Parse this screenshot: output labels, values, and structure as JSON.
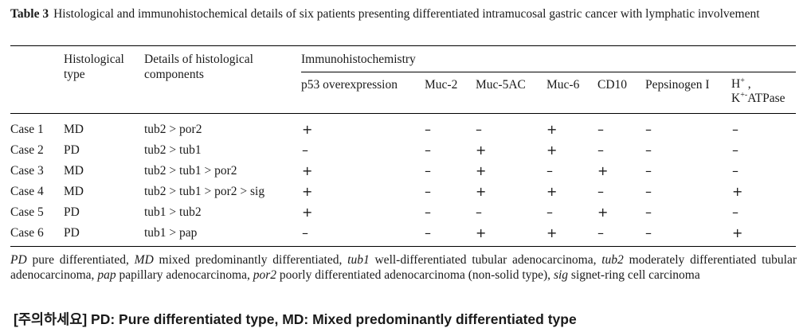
{
  "caption": {
    "label": "Table 3",
    "text": "Histological and immunohistochemical details of six patients presenting differentiated intramucosal gastric cancer with lymphatic involvement"
  },
  "headers": {
    "histological_type": "Histological type",
    "details": "Details of histological components",
    "ihc": "Immunohistochemistry",
    "markers": [
      "p53 overexpression",
      "Muc-2",
      "Muc-5AC",
      "Muc-6",
      "CD10",
      "Pepsinogen I"
    ],
    "atpase_line1_base": "H",
    "atpase_line1_sup": "+",
    "atpase_line1_tail": " ,",
    "atpase_line2_base": "K",
    "atpase_line2_sup": "+-",
    "atpase_line2_tail": "ATPase"
  },
  "rows": [
    {
      "case": "Case 1",
      "type": "MD",
      "details": "tub2 > por2",
      "markers": [
        "+",
        "–",
        "–",
        "+",
        "–",
        "–",
        "–"
      ]
    },
    {
      "case": "Case 2",
      "type": "PD",
      "details": "tub2 > tub1",
      "markers": [
        "–",
        "–",
        "+",
        "+",
        "–",
        "–",
        "–"
      ]
    },
    {
      "case": "Case 3",
      "type": "MD",
      "details": "tub2 > tub1 > por2",
      "markers": [
        "+",
        "–",
        "+",
        "–",
        "+",
        "–",
        "–"
      ]
    },
    {
      "case": "Case 4",
      "type": "MD",
      "details": "tub2 > tub1 > por2 > sig",
      "markers": [
        "+",
        "–",
        "+",
        "+",
        "–",
        "–",
        "+"
      ]
    },
    {
      "case": "Case 5",
      "type": "PD",
      "details": "tub1 > tub2",
      "markers": [
        "+",
        "–",
        "–",
        "–",
        "+",
        "–",
        "–"
      ]
    },
    {
      "case": "Case 6",
      "type": "PD",
      "details": "tub1 > pap",
      "markers": [
        "–",
        "–",
        "+",
        "+",
        "–",
        "–",
        "+"
      ]
    }
  ],
  "footnote": [
    {
      "abbr": "PD",
      "text": " pure differentiated, "
    },
    {
      "abbr": "MD",
      "text": " mixed predominantly differentiated, "
    },
    {
      "abbr": "tub1",
      "text": " well-differentiated tubular adenocarcinoma, "
    },
    {
      "abbr": "tub2",
      "text": " moderately differentiated tubular adenocarcinoma, "
    },
    {
      "abbr": "pap",
      "text": " papillary adenocarcinoma, "
    },
    {
      "abbr": "por2",
      "text": " poorly differentiated adenocarcinoma (non-solid type), "
    },
    {
      "abbr": "sig",
      "text": " signet-ring cell carcinoma"
    }
  ],
  "note": "[주의하세요] PD: Pure differentiated type, MD: Mixed predominantly differentiated type"
}
